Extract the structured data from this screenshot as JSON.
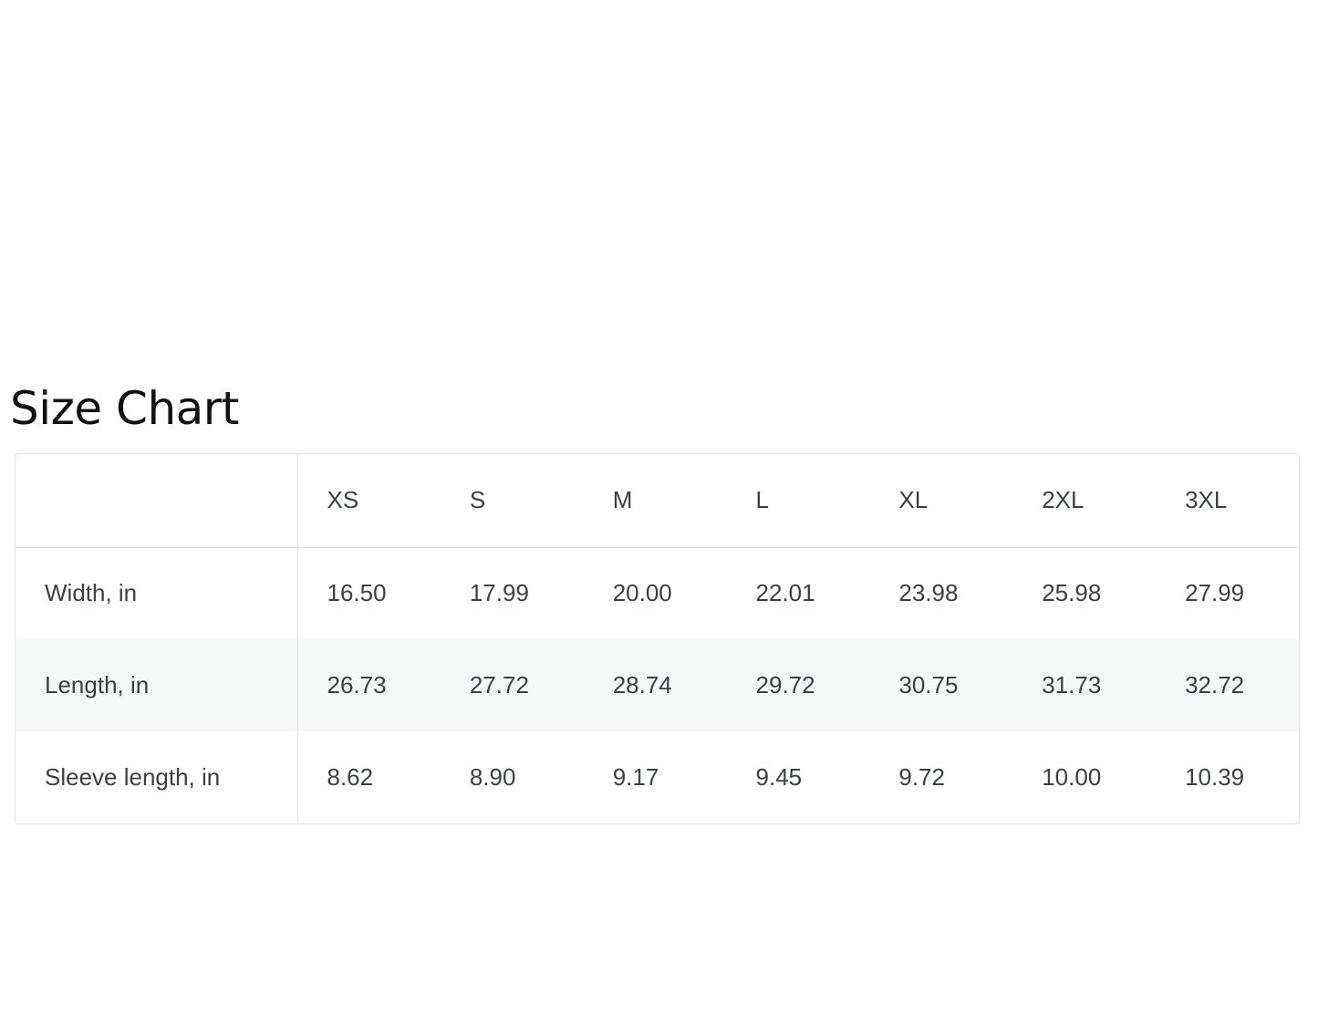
{
  "title": "Size Chart",
  "table": {
    "corner": "",
    "sizes": [
      "XS",
      "S",
      "M",
      "L",
      "XL",
      "2XL",
      "3XL"
    ],
    "rows": [
      {
        "label": "Width, in",
        "values": [
          "16.50",
          "17.99",
          "20.00",
          "22.01",
          "23.98",
          "25.98",
          "27.99"
        ]
      },
      {
        "label": "Length, in",
        "values": [
          "26.73",
          "27.72",
          "28.74",
          "29.72",
          "30.75",
          "31.73",
          "32.72"
        ]
      },
      {
        "label": "Sleeve length, in",
        "values": [
          "8.62",
          "8.90",
          "9.17",
          "9.45",
          "9.72",
          "10.00",
          "10.39"
        ]
      }
    ]
  }
}
